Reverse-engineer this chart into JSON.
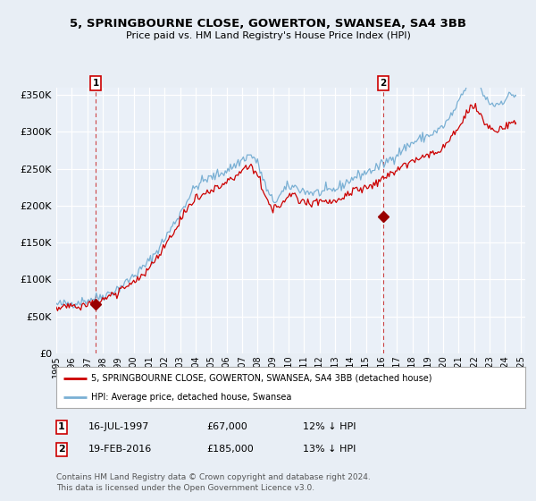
{
  "title": "5, SPRINGBOURNE CLOSE, GOWERTON, SWANSEA, SA4 3BB",
  "subtitle": "Price paid vs. HM Land Registry's House Price Index (HPI)",
  "legend_line1": "5, SPRINGBOURNE CLOSE, GOWERTON, SWANSEA, SA4 3BB (detached house)",
  "legend_line2": "HPI: Average price, detached house, Swansea",
  "footnote": "Contains HM Land Registry data © Crown copyright and database right 2024.\nThis data is licensed under the Open Government Licence v3.0.",
  "marker1_label": "1",
  "marker1_date": "16-JUL-1997",
  "marker1_price": "£67,000",
  "marker1_hpi": "12% ↓ HPI",
  "marker1_year": 1997.54,
  "marker1_value": 67000,
  "marker2_label": "2",
  "marker2_date": "19-FEB-2016",
  "marker2_price": "£185,000",
  "marker2_hpi": "13% ↓ HPI",
  "marker2_year": 2016.13,
  "marker2_value": 185000,
  "hpi_color": "#7ab0d4",
  "price_color": "#cc0000",
  "marker_color": "#990000",
  "background_color": "#e8eef5",
  "plot_bg": "#eaf0f8",
  "grid_color": "#ffffff",
  "ylim": [
    0,
    360000
  ],
  "yticks": [
    0,
    50000,
    100000,
    150000,
    200000,
    250000,
    300000,
    350000
  ],
  "ytick_labels": [
    "£0",
    "£50K",
    "£100K",
    "£150K",
    "£200K",
    "£250K",
    "£300K",
    "£350K"
  ],
  "xlim_start": 1995.5,
  "xlim_end": 2025.3,
  "xtick_years": [
    1995,
    1996,
    1997,
    1998,
    1999,
    2000,
    2001,
    2002,
    2003,
    2004,
    2005,
    2006,
    2007,
    2008,
    2009,
    2010,
    2011,
    2012,
    2013,
    2014,
    2015,
    2016,
    2017,
    2018,
    2019,
    2020,
    2021,
    2022,
    2023,
    2024,
    2025
  ]
}
